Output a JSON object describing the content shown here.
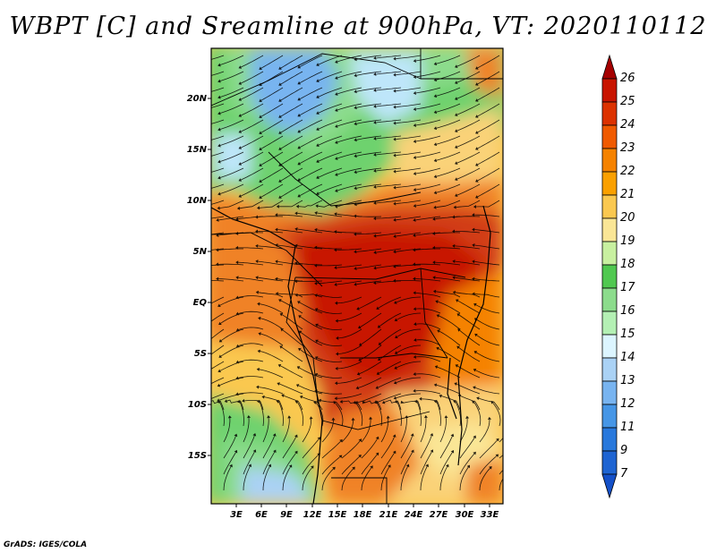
{
  "title": "WBPT [C] and Sreamline at 900hPa, VT: 2020110112",
  "credit": "GrADS: IGES/COLA",
  "map": {
    "lat_labels": [
      "20N",
      "15N",
      "10N",
      "5N",
      "EQ",
      "5S",
      "10S",
      "15S"
    ],
    "lon_labels": [
      "3E",
      "6E",
      "9E",
      "12E",
      "15E",
      "18E",
      "21E",
      "24E",
      "27E",
      "30E",
      "33E"
    ]
  },
  "colorbar": {
    "labels": [
      "26",
      "25",
      "24",
      "23",
      "22",
      "21",
      "20",
      "19",
      "18",
      "17",
      "16",
      "15",
      "14",
      "13",
      "12",
      "11",
      "9",
      "7"
    ],
    "colors": [
      "#a50000",
      "#c81400",
      "#dc3200",
      "#f05a00",
      "#f58200",
      "#faa000",
      "#fac850",
      "#fae696",
      "#c8f0a0",
      "#50c850",
      "#8cdc8c",
      "#b4f0b4",
      "#dcf5ff",
      "#aad2f5",
      "#78b4f0",
      "#4696e6",
      "#2878dc",
      "#1e64d2",
      "#1450c8"
    ]
  },
  "colors": {
    "hot": "#d23c14",
    "warm": "#f08228",
    "mild": "#fad278",
    "green": "#6ed26e",
    "cool": "#bee6fa"
  }
}
